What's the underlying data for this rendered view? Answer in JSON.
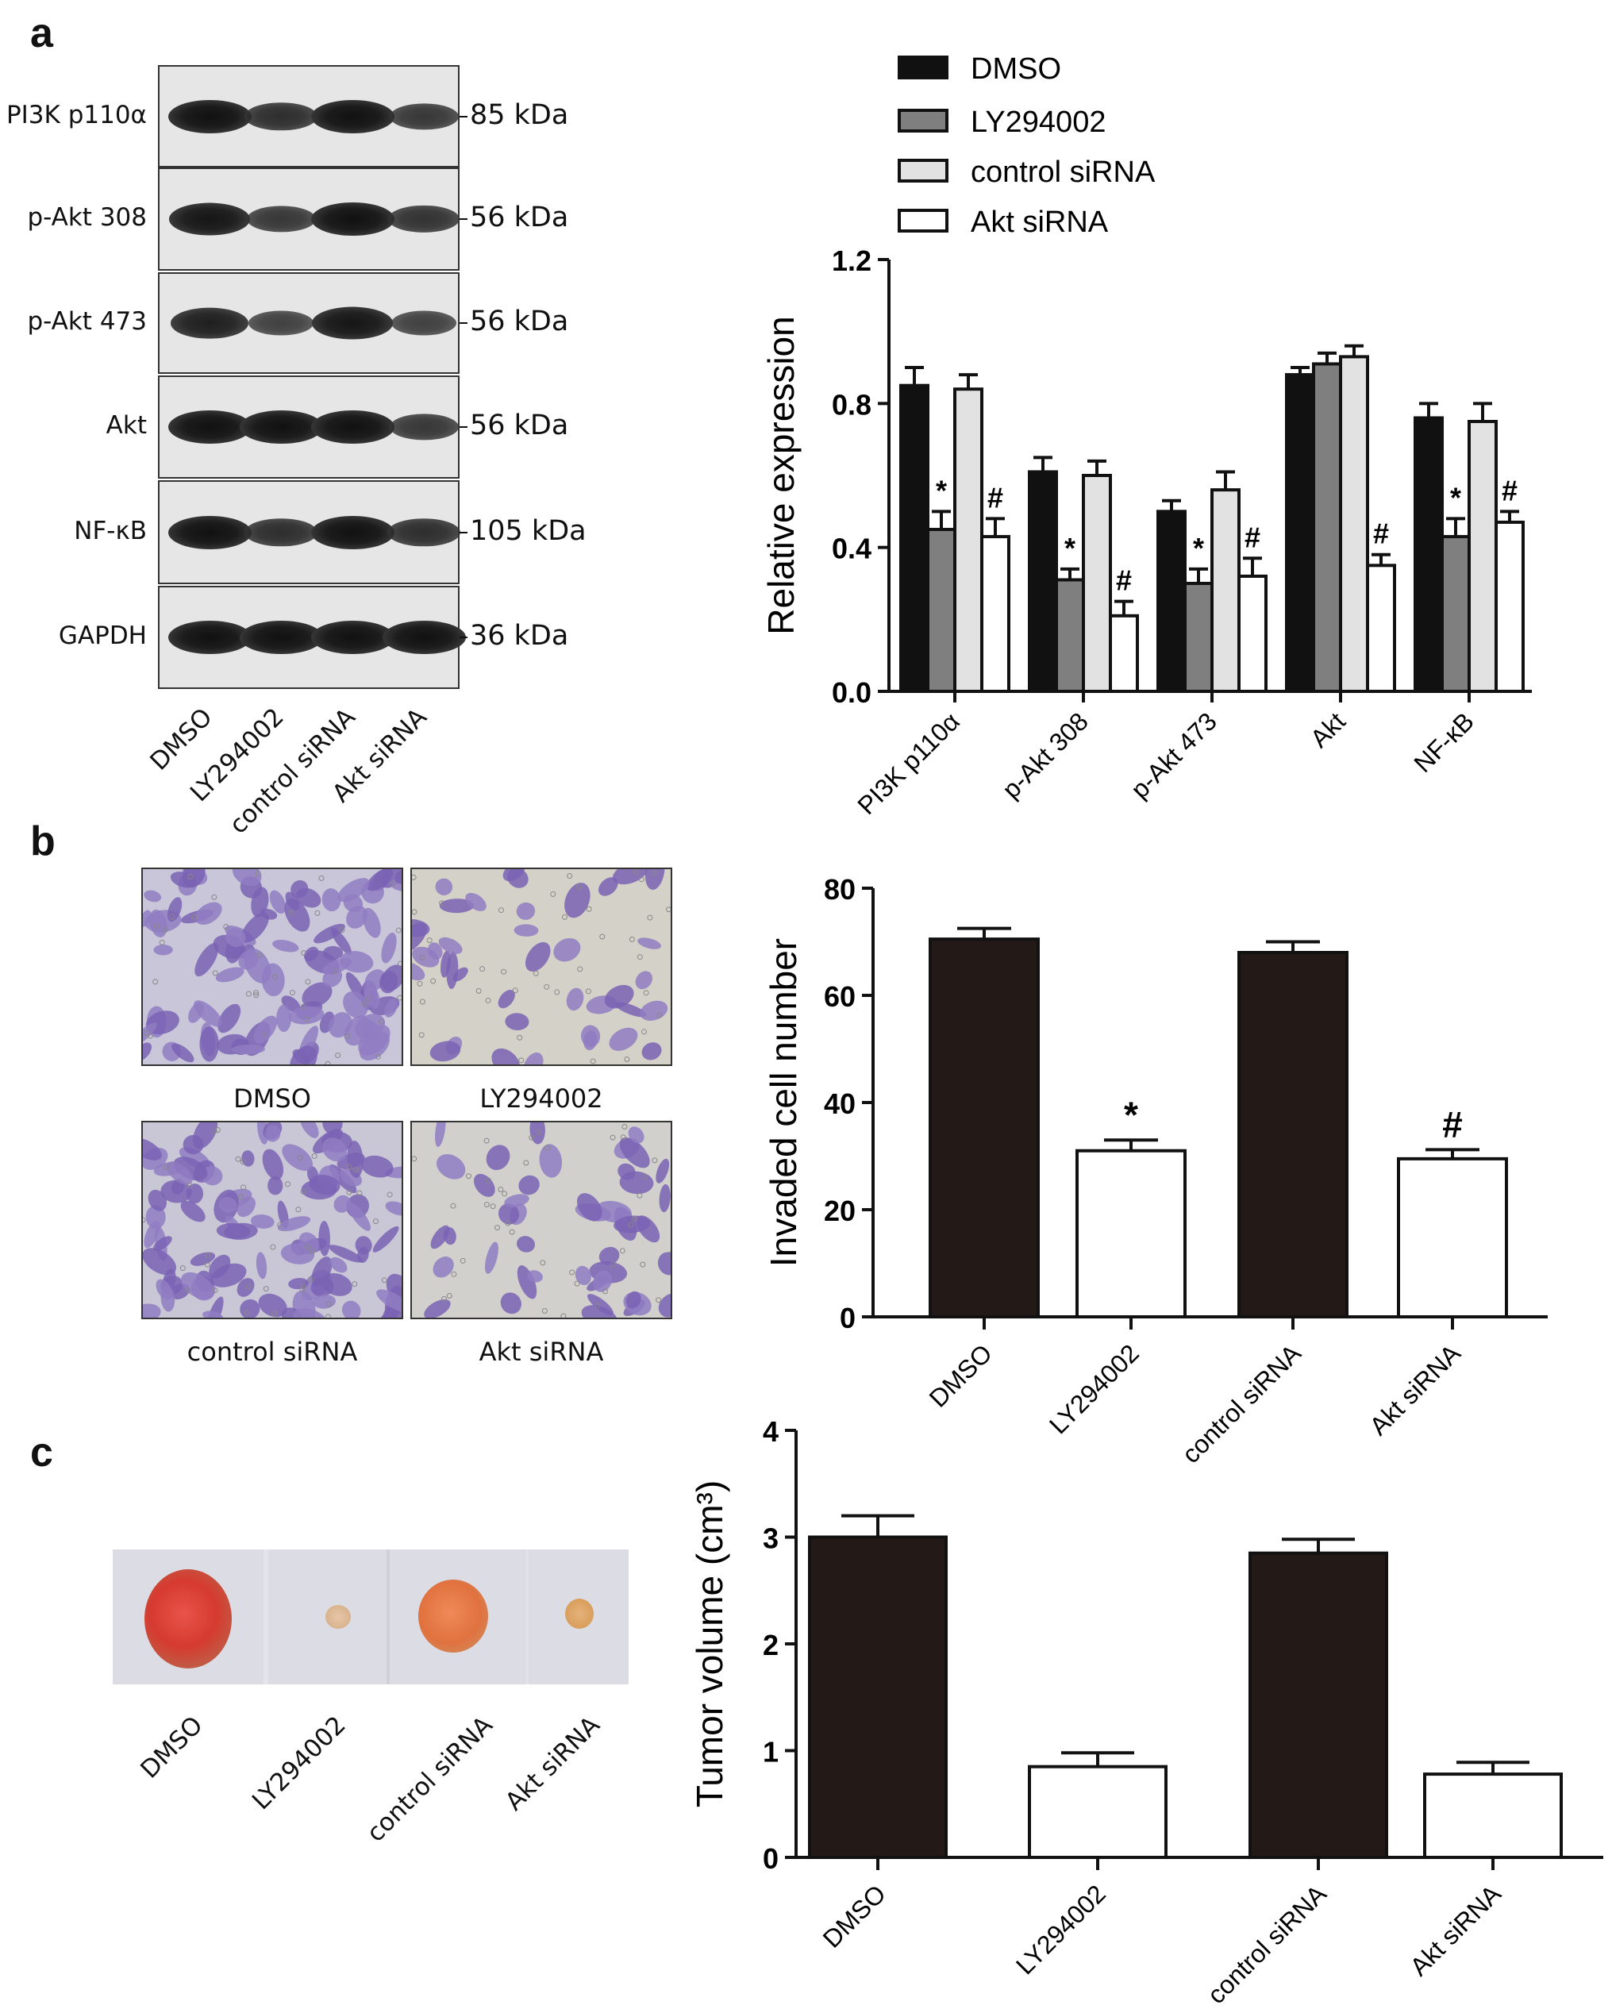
{
  "panels": {
    "a": "a",
    "b": "b",
    "c": "c"
  },
  "western_blot": {
    "rows": [
      {
        "label": "PI3K p110α",
        "kda": "85 kDa",
        "bands": [
          1.0,
          0.7,
          1.0,
          0.6
        ]
      },
      {
        "label": "p-Akt 308",
        "kda": "56 kDa",
        "bands": [
          0.95,
          0.6,
          1.0,
          0.65
        ]
      },
      {
        "label": "p-Akt 473",
        "kda": "56 kDa",
        "bands": [
          0.85,
          0.5,
          0.95,
          0.5
        ]
      },
      {
        "label": "Akt",
        "kda": "56 kDa",
        "bands": [
          1.0,
          1.0,
          1.0,
          0.6
        ]
      },
      {
        "label": "NF-κB",
        "kda": "105 kDa",
        "bands": [
          1.0,
          0.7,
          1.0,
          0.7
        ]
      },
      {
        "label": "GAPDH",
        "kda": "36 kDa",
        "bands": [
          1.0,
          1.0,
          1.0,
          1.0
        ]
      }
    ],
    "lanes": [
      "DMSO",
      "LY294002",
      "control siRNA",
      "Akt siRNA"
    ]
  },
  "micrographs": {
    "captions": [
      "DMSO",
      "LY294002",
      "control siRNA",
      "Akt siRNA"
    ],
    "densities": [
      0.85,
      0.35,
      0.9,
      0.4
    ]
  },
  "tumor_photo": {
    "captions": [
      "DMSO",
      "LY294002",
      "control siRNA",
      "Akt siRNA"
    ]
  },
  "chart_data": [
    {
      "type": "bar",
      "categories": [
        "PI3K p110α",
        "p-Akt 308",
        "p-Akt 473",
        "Akt",
        "NF-κB"
      ],
      "series": [
        {
          "name": "DMSO",
          "values": [
            0.85,
            0.61,
            0.5,
            0.88,
            0.76
          ],
          "errors": [
            0.05,
            0.04,
            0.03,
            0.02,
            0.04
          ],
          "color": "#111111"
        },
        {
          "name": "LY294002",
          "values": [
            0.45,
            0.31,
            0.3,
            0.91,
            0.43
          ],
          "errors": [
            0.05,
            0.03,
            0.04,
            0.03,
            0.05
          ],
          "color": "#7f7f7f"
        },
        {
          "name": "control siRNA",
          "values": [
            0.84,
            0.6,
            0.56,
            0.93,
            0.75
          ],
          "errors": [
            0.04,
            0.04,
            0.05,
            0.03,
            0.05
          ],
          "color": "#e2e2e2"
        },
        {
          "name": "Akt siRNA",
          "values": [
            0.43,
            0.21,
            0.32,
            0.35,
            0.47
          ],
          "errors": [
            0.05,
            0.04,
            0.05,
            0.03,
            0.03
          ],
          "color": "#ffffff"
        }
      ],
      "annotations": [
        {
          "series": 1,
          "category": 0,
          "text": "*"
        },
        {
          "series": 3,
          "category": 0,
          "text": "#"
        },
        {
          "series": 1,
          "category": 1,
          "text": "*"
        },
        {
          "series": 3,
          "category": 1,
          "text": "#"
        },
        {
          "series": 1,
          "category": 2,
          "text": "*"
        },
        {
          "series": 3,
          "category": 2,
          "text": "#"
        },
        {
          "series": 3,
          "category": 3,
          "text": "#"
        },
        {
          "series": 1,
          "category": 4,
          "text": "*"
        },
        {
          "series": 3,
          "category": 4,
          "text": "#"
        }
      ],
      "ylabel": "Relative expression",
      "ylim": [
        0,
        1.2
      ],
      "yticks": [
        "0.0",
        "0.4",
        "0.8",
        "1.2"
      ],
      "legend": "top-left"
    },
    {
      "type": "bar",
      "categories": [
        "DMSO",
        "LY294002",
        "control siRNA",
        "Akt siRNA"
      ],
      "values": [
        70.5,
        31,
        68,
        29.5
      ],
      "errors": [
        2,
        2,
        2,
        1.7
      ],
      "colors": [
        "#231a18",
        "#ffffff",
        "#231a18",
        "#ffffff"
      ],
      "annotations": [
        "",
        "*",
        "",
        "#"
      ],
      "ylabel": "Invaded cell number",
      "ylim": [
        0,
        80
      ],
      "yticks": [
        "0",
        "20",
        "40",
        "60",
        "80"
      ]
    },
    {
      "type": "bar",
      "categories": [
        "DMSO",
        "LY294002",
        "control siRNA",
        "Akt siRNA"
      ],
      "values": [
        3.0,
        0.85,
        2.85,
        0.78
      ],
      "errors": [
        0.2,
        0.13,
        0.13,
        0.11
      ],
      "colors": [
        "#231a18",
        "#ffffff",
        "#231a18",
        "#ffffff"
      ],
      "ylabel": "Tumor volume (cm³)",
      "ylim": [
        0,
        4
      ],
      "yticks": [
        "0",
        "1",
        "2",
        "3",
        "4"
      ]
    }
  ]
}
